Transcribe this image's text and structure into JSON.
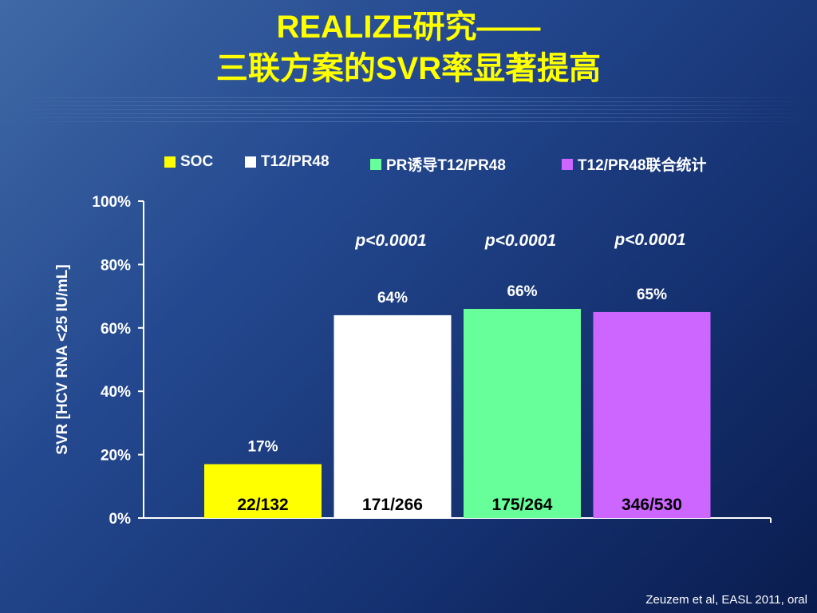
{
  "title_line1": "REALIZE研究——",
  "title_line2": "三联方案的SVR率显著提高",
  "footer": "Zeuzem et al, EASL 2011, oral",
  "colors": {
    "SOC": "#ffff00",
    "T12/PR48": "#ffffff",
    "PR诱导T12/PR48": "#66ff99",
    "T12/PR48联合统计": "#cc66ff"
  },
  "chart_data": {
    "type": "bar",
    "title": "",
    "ylabel": "SVR [HCV RNA <25 IU/mL]",
    "xlabel": "",
    "ylim": [
      0,
      100
    ],
    "y_ticks": [
      "0%",
      "20%",
      "40%",
      "60%",
      "80%",
      "100%"
    ],
    "legend_position": "top",
    "grid": false,
    "series": [
      {
        "name": "SOC",
        "value": 17,
        "label": "17%",
        "count": "22/132",
        "pvalue": ""
      },
      {
        "name": "T12/PR48",
        "value": 64,
        "label": "64%",
        "count": "171/266",
        "pvalue": "p<0.0001"
      },
      {
        "name": "PR诱导T12/PR48",
        "value": 66,
        "label": "66%",
        "count": "175/264",
        "pvalue": "p<0.0001"
      },
      {
        "name": "T12/PR48联合统计",
        "value": 65,
        "label": "65%",
        "count": "346/530",
        "pvalue": "p<0.0001"
      }
    ]
  }
}
